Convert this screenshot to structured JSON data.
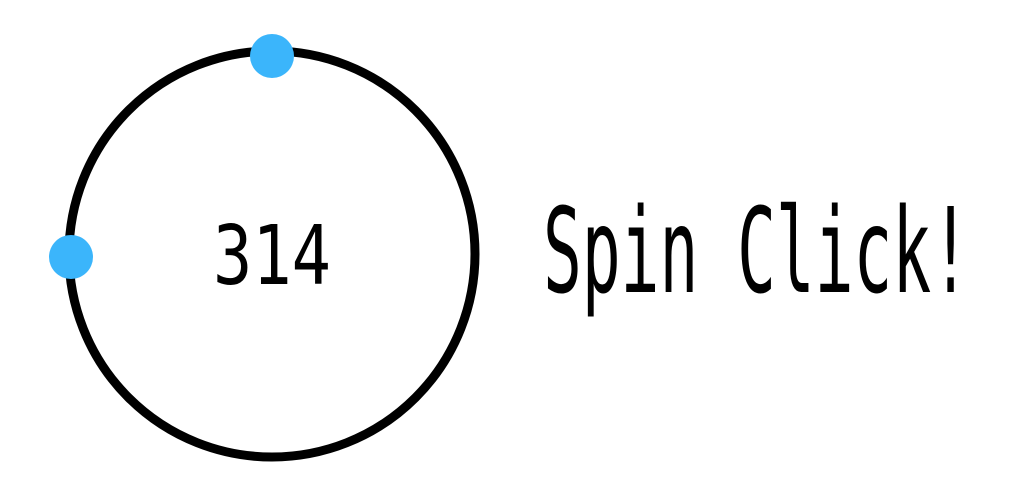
{
  "counter": {
    "value": "314"
  },
  "title": "Spin Click!"
}
